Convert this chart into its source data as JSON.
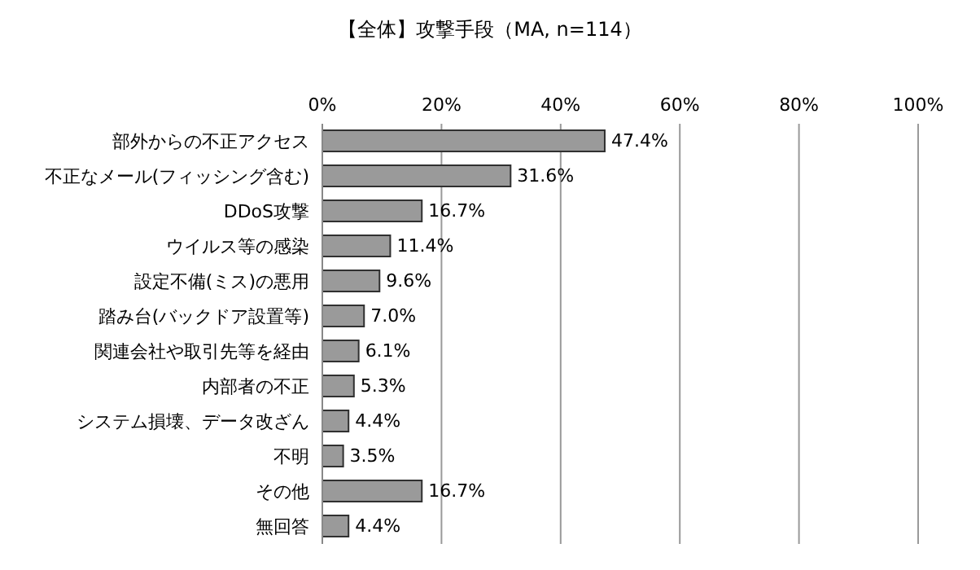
{
  "chart_data": {
    "type": "bar",
    "orientation": "horizontal",
    "title": "【全体】攻撃手段（MA, n=114）",
    "categories": [
      "部外からの不正アクセス",
      "不正なメール(フィッシング含む)",
      "DDoS攻撃",
      "ウイルス等の感染",
      "設定不備(ミス)の悪用",
      "踏み台(バックドア設置等)",
      "関連会社や取引先等を経由",
      "内部者の不正",
      "システム損壊、データ改ざん",
      "不明",
      "その他",
      "無回答"
    ],
    "values": [
      47.4,
      31.6,
      16.7,
      11.4,
      9.6,
      7.0,
      6.1,
      5.3,
      4.4,
      3.5,
      16.7,
      4.4
    ],
    "value_labels": [
      "47.4%",
      "31.6%",
      "16.7%",
      "11.4%",
      "9.6%",
      "7.0%",
      "6.1%",
      "5.3%",
      "4.4%",
      "3.5%",
      "16.7%",
      "4.4%"
    ],
    "color": "#9a9a9a",
    "xlim": [
      0,
      100
    ],
    "xticks": [
      {
        "value": 0,
        "label": "0%"
      },
      {
        "value": 20,
        "label": "20%"
      },
      {
        "value": 40,
        "label": "40%"
      },
      {
        "value": 60,
        "label": "60%"
      },
      {
        "value": 80,
        "label": "80%"
      },
      {
        "value": 100,
        "label": "100%"
      }
    ],
    "grid": "x",
    "legend": false
  }
}
